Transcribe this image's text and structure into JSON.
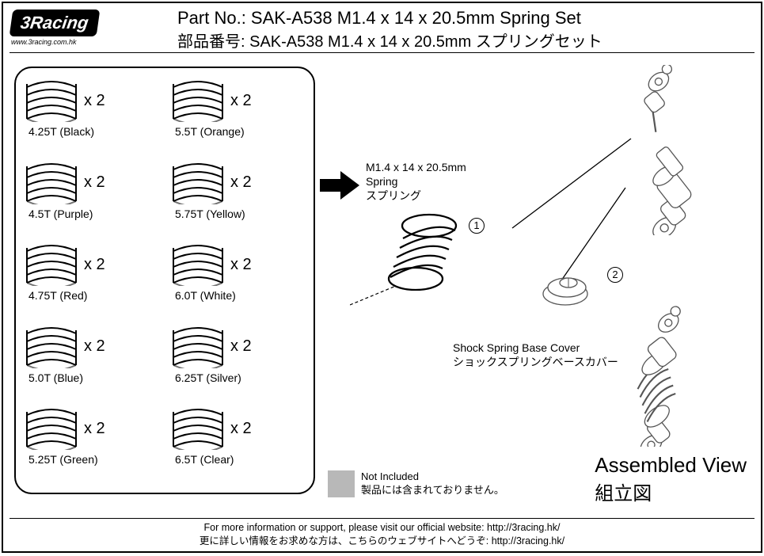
{
  "logo": {
    "brand": "3Racing",
    "url": "www.3racing.com.hk"
  },
  "header": {
    "en": "Part No.: SAK-A538  M1.4 x 14 x 20.5mm Spring Set",
    "jp": "部品番号: SAK-A538  M1.4 x 14 x 20.5mm スプリングセット"
  },
  "parts": [
    {
      "label": "4.25T (Black)",
      "qty": "x 2"
    },
    {
      "label": "5.5T (Orange)",
      "qty": "x 2"
    },
    {
      "label": "4.5T (Purple)",
      "qty": "x 2"
    },
    {
      "label": "5.75T (Yellow)",
      "qty": "x 2"
    },
    {
      "label": "4.75T (Red)",
      "qty": "x 2"
    },
    {
      "label": "6.0T (White)",
      "qty": "x 2"
    },
    {
      "label": "5.0T (Blue)",
      "qty": "x 2"
    },
    {
      "label": "6.25T (Silver)",
      "qty": "x 2"
    },
    {
      "label": "5.25T (Green)",
      "qty": "x 2"
    },
    {
      "label": "6.5T (Clear)",
      "qty": "x 2"
    }
  ],
  "assembly": {
    "spring_en": "M1.4 x 14 x 20.5mm",
    "spring_en2": "Spring",
    "spring_jp": "スプリング",
    "cover_en": "Shock Spring Base Cover",
    "cover_jp": "ショックスプリングベースカバー",
    "num1": "1",
    "num2": "2",
    "view_en": "Assembled View",
    "view_jp": "組立図"
  },
  "not_included": {
    "en": "Not Included",
    "jp": "製品には含まれておりません。"
  },
  "footer": {
    "en": "For more information or support, please visit our official website: http://3racing.hk/",
    "jp": "更に詳しい情報をお求めな方は、こちらのウェブサイトへどうぞ: http://3racing.hk/"
  },
  "colors": {
    "grey": "#b8b8b8"
  }
}
